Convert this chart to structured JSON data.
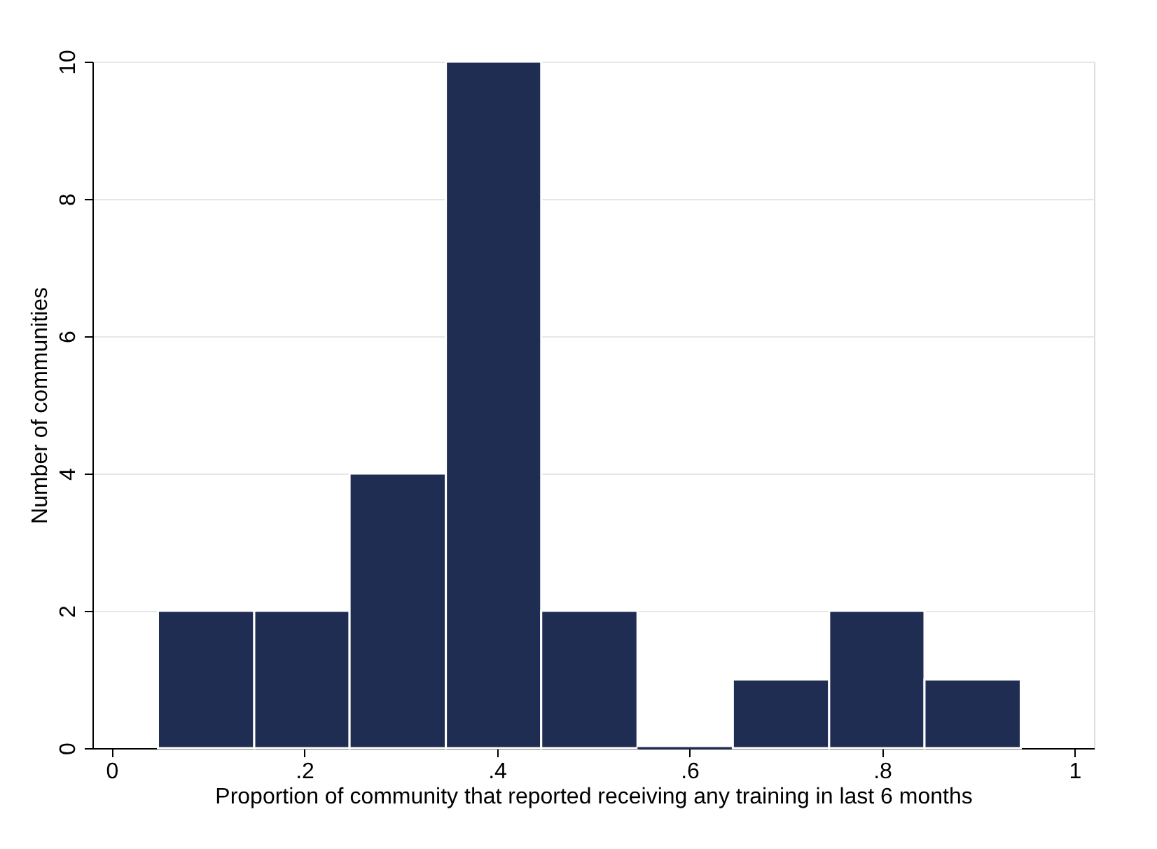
{
  "chart_data": {
    "type": "histogram",
    "xlabel": "Proportion of community that reported receiving any training in last 6 months",
    "ylabel": "Number of communities",
    "bins": [
      0.048,
      0.148,
      0.247,
      0.347,
      0.446,
      0.546,
      0.645,
      0.745,
      0.844,
      0.944
    ],
    "values": [
      2,
      2,
      4,
      10,
      2,
      0,
      1,
      2,
      1
    ],
    "color": "#1f2d52",
    "xlim": [
      -0.02,
      1.02
    ],
    "ylim": [
      0,
      10
    ],
    "xticks": [
      0,
      {
        "value": 0.2,
        "label": ".2"
      },
      {
        "value": 0.4,
        "label": ".4"
      },
      {
        "value": 0.6,
        "label": ".6"
      },
      {
        "value": 0.8,
        "label": ".8"
      },
      1
    ],
    "yticks": [
      0,
      2,
      4,
      6,
      8,
      10
    ],
    "grid": "y"
  }
}
